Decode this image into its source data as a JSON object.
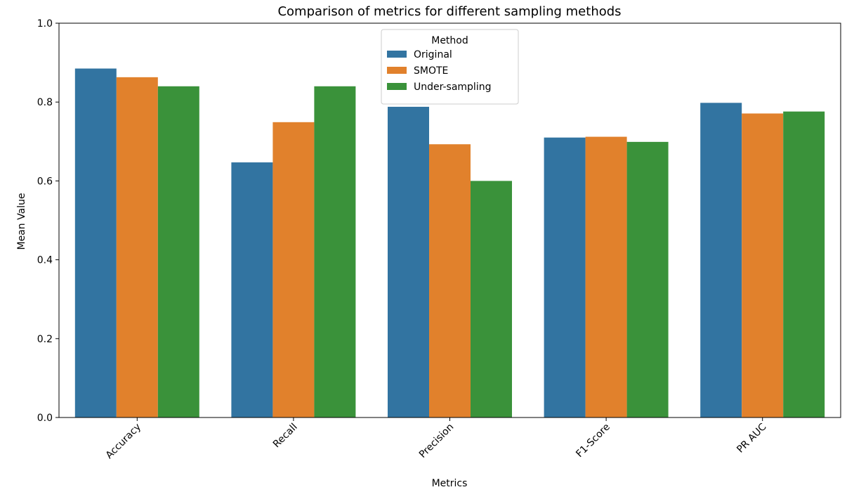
{
  "chart_data": {
    "type": "bar",
    "title": "Comparison of metrics for different sampling methods",
    "xlabel": "Metrics",
    "ylabel": "Mean Value",
    "ylim": [
      0,
      1.0
    ],
    "yticks": [
      "0.0",
      "0.2",
      "0.4",
      "0.6",
      "0.8",
      "1.0"
    ],
    "ytick_values": [
      0.0,
      0.2,
      0.4,
      0.6,
      0.8,
      1.0
    ],
    "categories": [
      "Accuracy",
      "Recall",
      "Precision",
      "F1-Score",
      "PR AUC"
    ],
    "series": [
      {
        "name": "Original",
        "color": "#3274a1",
        "values": [
          0.885,
          0.647,
          0.788,
          0.71,
          0.798
        ]
      },
      {
        "name": "SMOTE",
        "color": "#e1812c",
        "values": [
          0.863,
          0.749,
          0.693,
          0.712,
          0.771
        ]
      },
      {
        "name": "Under-sampling",
        "color": "#3a923a",
        "values": [
          0.84,
          0.84,
          0.6,
          0.699,
          0.776
        ]
      }
    ],
    "legend": {
      "title": "Method",
      "placement": "upper-center"
    },
    "grid": false
  }
}
